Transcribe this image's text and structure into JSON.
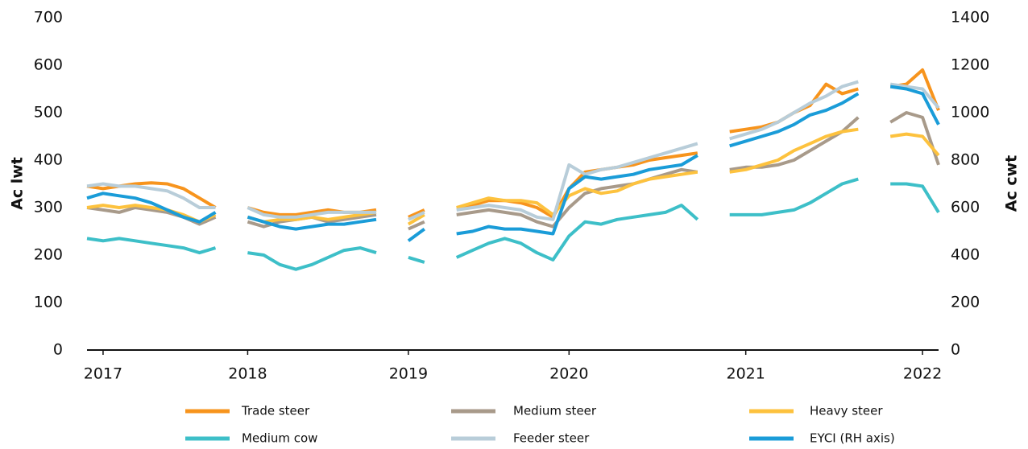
{
  "chart_data": {
    "type": "line",
    "y_label": "Ac lwt",
    "y2_label": "Ac cwt",
    "categories": [
      null,
      "2017",
      null,
      null,
      null,
      null,
      null,
      null,
      null,
      null,
      "2018",
      null,
      null,
      null,
      null,
      null,
      null,
      null,
      null,
      null,
      "2019",
      null,
      null,
      null,
      null,
      null,
      null,
      null,
      null,
      null,
      "2020",
      null,
      null,
      null,
      null,
      null,
      null,
      null,
      null,
      null,
      null,
      "2021",
      null,
      null,
      null,
      null,
      null,
      null,
      null,
      null,
      null,
      null,
      "2022",
      null
    ],
    "ylim": [
      0,
      700
    ],
    "yticks": [
      0,
      100,
      200,
      300,
      400,
      500,
      600,
      700
    ],
    "y2lim": [
      0,
      1400
    ],
    "y2ticks": [
      0,
      200,
      400,
      600,
      800,
      1000,
      1200,
      1400
    ],
    "series": [
      {
        "name": "Trade steer",
        "color": "#f7941d",
        "values": [
          345,
          340,
          345,
          350,
          352,
          350,
          340,
          320,
          300,
          null,
          300,
          290,
          285,
          285,
          290,
          295,
          290,
          290,
          295,
          null,
          280,
          295,
          null,
          300,
          305,
          315,
          315,
          310,
          300,
          280,
          340,
          375,
          380,
          385,
          390,
          400,
          405,
          410,
          415,
          null,
          460,
          465,
          470,
          480,
          500,
          515,
          560,
          540,
          550,
          null,
          555,
          560,
          590,
          505
        ]
      },
      {
        "name": "Medium steer",
        "color": "#a89a8a",
        "values": [
          300,
          295,
          290,
          300,
          295,
          290,
          280,
          265,
          280,
          null,
          270,
          260,
          270,
          275,
          280,
          270,
          275,
          280,
          285,
          null,
          255,
          270,
          null,
          285,
          290,
          295,
          290,
          285,
          270,
          260,
          300,
          330,
          340,
          345,
          350,
          360,
          370,
          380,
          375,
          null,
          380,
          385,
          385,
          390,
          400,
          420,
          440,
          460,
          490,
          null,
          480,
          500,
          490,
          390
        ]
      },
      {
        "name": "Heavy steer",
        "color": "#fdc23e",
        "values": [
          300,
          305,
          300,
          305,
          300,
          295,
          285,
          270,
          285,
          null,
          280,
          270,
          275,
          275,
          280,
          275,
          280,
          285,
          290,
          null,
          265,
          285,
          null,
          300,
          310,
          320,
          315,
          315,
          310,
          285,
          325,
          340,
          330,
          335,
          350,
          360,
          365,
          370,
          375,
          null,
          375,
          380,
          390,
          400,
          420,
          435,
          450,
          460,
          465,
          null,
          450,
          455,
          450,
          410
        ]
      },
      {
        "name": "Medium cow",
        "color": "#3dbfc8",
        "values": [
          235,
          230,
          235,
          230,
          225,
          220,
          215,
          205,
          215,
          null,
          205,
          200,
          180,
          170,
          180,
          195,
          210,
          215,
          205,
          null,
          195,
          185,
          null,
          195,
          210,
          225,
          235,
          225,
          205,
          190,
          240,
          270,
          265,
          275,
          280,
          285,
          290,
          305,
          275,
          null,
          285,
          285,
          285,
          290,
          295,
          310,
          330,
          350,
          360,
          null,
          350,
          350,
          345,
          290
        ]
      },
      {
        "name": "Feeder steer",
        "color": "#b8cdd9",
        "values": [
          345,
          350,
          345,
          345,
          340,
          335,
          320,
          300,
          300,
          null,
          300,
          285,
          280,
          280,
          285,
          290,
          290,
          290,
          290,
          null,
          275,
          290,
          null,
          295,
          300,
          305,
          300,
          295,
          280,
          275,
          390,
          370,
          380,
          385,
          395,
          405,
          415,
          425,
          435,
          null,
          445,
          455,
          465,
          480,
          500,
          520,
          535,
          555,
          565,
          null,
          560,
          555,
          550,
          510
        ]
      },
      {
        "name": "EYCI (RH axis)",
        "color": "#1a9cd8",
        "axis": "y2",
        "values": [
          640,
          660,
          650,
          640,
          620,
          590,
          560,
          540,
          580,
          null,
          560,
          540,
          520,
          510,
          520,
          530,
          530,
          540,
          550,
          null,
          460,
          510,
          null,
          490,
          500,
          520,
          510,
          510,
          500,
          490,
          680,
          730,
          720,
          730,
          740,
          760,
          770,
          780,
          820,
          null,
          860,
          880,
          900,
          920,
          950,
          990,
          1010,
          1040,
          1080,
          null,
          1110,
          1100,
          1080,
          950
        ]
      }
    ]
  }
}
